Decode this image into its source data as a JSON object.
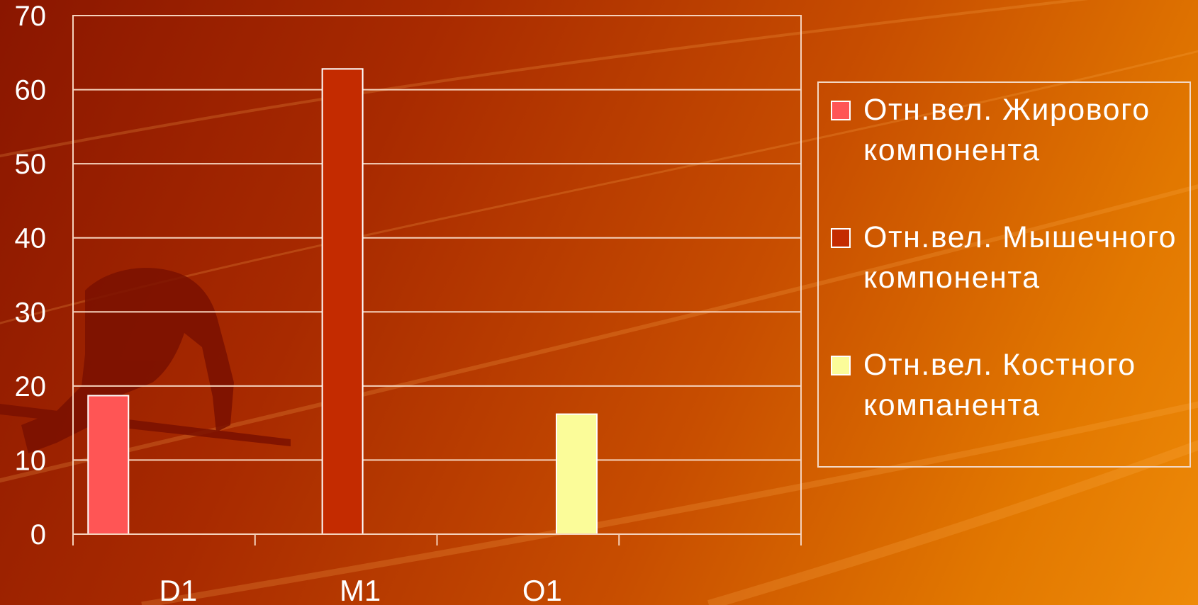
{
  "chart_data": {
    "type": "bar",
    "categories": [
      "D1",
      "M1",
      "O1"
    ],
    "series": [
      {
        "name": "Отн.вел. Жирового компонента",
        "color": "#ff5555",
        "values": [
          18.7,
          null,
          null
        ]
      },
      {
        "name": "Отн.вел. Мышечного компонента",
        "color": "#c42b00",
        "values": [
          null,
          62.8,
          null
        ]
      },
      {
        "name": "Отн.вел. Костного компанента",
        "color": "#fbfc99",
        "values": [
          null,
          null,
          16.2
        ]
      }
    ],
    "ylim": [
      0,
      70
    ],
    "yticks": [
      0,
      10,
      20,
      30,
      40,
      50,
      60,
      70
    ],
    "grid": true,
    "legend_position": "right",
    "title": "",
    "xlabel": "",
    "ylabel": ""
  }
}
